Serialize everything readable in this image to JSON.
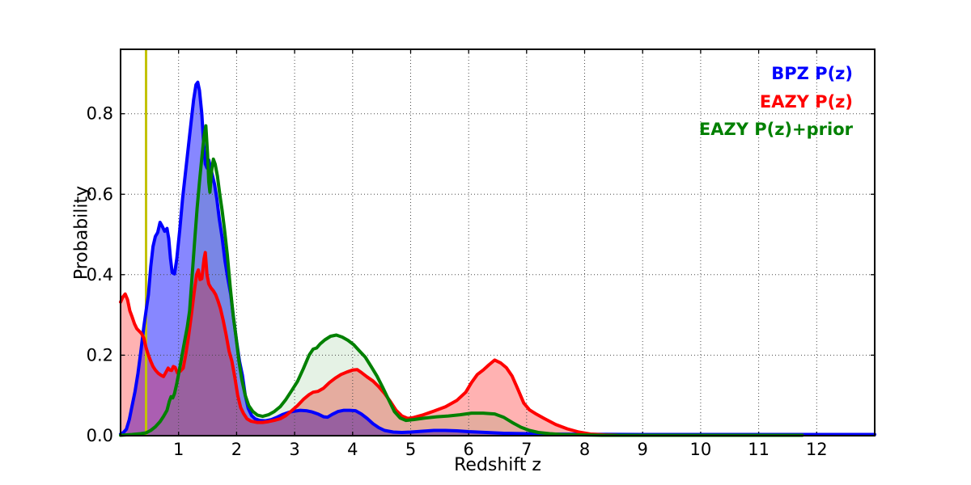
{
  "chart_data": {
    "type": "area",
    "title": "",
    "xlabel": "Redshift z",
    "ylabel": "Probability",
    "xlim": [
      0,
      13
    ],
    "ylim": [
      0,
      0.96
    ],
    "xticks": [
      1,
      2,
      3,
      4,
      5,
      6,
      7,
      8,
      9,
      10,
      11,
      12
    ],
    "yticks": [
      0.0,
      0.2,
      0.4,
      0.6,
      0.8
    ],
    "grid": "dotted-both-axes",
    "legend_position": "top-right",
    "grid_color": "#4a4a4a",
    "axis_color": "#000000",
    "vline": {
      "x": 0.44,
      "color": "#c3c300",
      "width": 3
    },
    "series": [
      {
        "name": "BPZ P(z)",
        "color": "#0000ff",
        "fill_opacity": 0.47,
        "points": [
          [
            0,
            0.004
          ],
          [
            0.05,
            0.008
          ],
          [
            0.1,
            0.016
          ],
          [
            0.15,
            0.04
          ],
          [
            0.2,
            0.075
          ],
          [
            0.25,
            0.11
          ],
          [
            0.3,
            0.155
          ],
          [
            0.35,
            0.21
          ],
          [
            0.4,
            0.27
          ],
          [
            0.44,
            0.31
          ],
          [
            0.48,
            0.35
          ],
          [
            0.52,
            0.42
          ],
          [
            0.56,
            0.47
          ],
          [
            0.6,
            0.495
          ],
          [
            0.64,
            0.505
          ],
          [
            0.68,
            0.53
          ],
          [
            0.72,
            0.52
          ],
          [
            0.76,
            0.508
          ],
          [
            0.8,
            0.515
          ],
          [
            0.83,
            0.49
          ],
          [
            0.86,
            0.44
          ],
          [
            0.89,
            0.405
          ],
          [
            0.93,
            0.402
          ],
          [
            0.97,
            0.44
          ],
          [
            1.02,
            0.51
          ],
          [
            1.07,
            0.59
          ],
          [
            1.12,
            0.655
          ],
          [
            1.17,
            0.72
          ],
          [
            1.22,
            0.785
          ],
          [
            1.26,
            0.835
          ],
          [
            1.3,
            0.872
          ],
          [
            1.33,
            0.878
          ],
          [
            1.36,
            0.858
          ],
          [
            1.4,
            0.8
          ],
          [
            1.43,
            0.73
          ],
          [
            1.46,
            0.675
          ],
          [
            1.49,
            0.665
          ],
          [
            1.52,
            0.685
          ],
          [
            1.55,
            0.667
          ],
          [
            1.58,
            0.648
          ],
          [
            1.62,
            0.625
          ],
          [
            1.66,
            0.588
          ],
          [
            1.7,
            0.54
          ],
          [
            1.75,
            0.492
          ],
          [
            1.8,
            0.435
          ],
          [
            1.85,
            0.39
          ],
          [
            1.9,
            0.35
          ],
          [
            1.95,
            0.29
          ],
          [
            2.0,
            0.235
          ],
          [
            2.05,
            0.185
          ],
          [
            2.1,
            0.15
          ],
          [
            2.15,
            0.1
          ],
          [
            2.2,
            0.068
          ],
          [
            2.26,
            0.05
          ],
          [
            2.32,
            0.042
          ],
          [
            2.4,
            0.038
          ],
          [
            2.5,
            0.037
          ],
          [
            2.6,
            0.04
          ],
          [
            2.7,
            0.046
          ],
          [
            2.8,
            0.053
          ],
          [
            2.9,
            0.058
          ],
          [
            3.0,
            0.061
          ],
          [
            3.1,
            0.063
          ],
          [
            3.2,
            0.062
          ],
          [
            3.3,
            0.059
          ],
          [
            3.4,
            0.054
          ],
          [
            3.5,
            0.047
          ],
          [
            3.57,
            0.046
          ],
          [
            3.65,
            0.053
          ],
          [
            3.75,
            0.06
          ],
          [
            3.85,
            0.063
          ],
          [
            3.95,
            0.063
          ],
          [
            4.05,
            0.062
          ],
          [
            4.15,
            0.054
          ],
          [
            4.25,
            0.043
          ],
          [
            4.35,
            0.03
          ],
          [
            4.45,
            0.02
          ],
          [
            4.55,
            0.013
          ],
          [
            4.7,
            0.009
          ],
          [
            4.85,
            0.008
          ],
          [
            5.0,
            0.009
          ],
          [
            5.2,
            0.011
          ],
          [
            5.4,
            0.013
          ],
          [
            5.6,
            0.013
          ],
          [
            5.8,
            0.012
          ],
          [
            6.0,
            0.01
          ],
          [
            6.3,
            0.008
          ],
          [
            6.6,
            0.006
          ],
          [
            7.0,
            0.005
          ],
          [
            7.5,
            0.004
          ],
          [
            8.0,
            0.0035
          ],
          [
            9.0,
            0.003
          ],
          [
            10.0,
            0.003
          ],
          [
            11.0,
            0.003
          ],
          [
            12.0,
            0.003
          ],
          [
            13.0,
            0.003
          ]
        ]
      },
      {
        "name": "EAZY P(z)",
        "color": "#ff0000",
        "fill_opacity": 0.3,
        "points": [
          [
            0,
            0.332
          ],
          [
            0.04,
            0.345
          ],
          [
            0.08,
            0.352
          ],
          [
            0.12,
            0.338
          ],
          [
            0.16,
            0.31
          ],
          [
            0.2,
            0.295
          ],
          [
            0.24,
            0.278
          ],
          [
            0.28,
            0.266
          ],
          [
            0.32,
            0.26
          ],
          [
            0.36,
            0.254
          ],
          [
            0.4,
            0.243
          ],
          [
            0.44,
            0.219
          ],
          [
            0.48,
            0.2
          ],
          [
            0.52,
            0.185
          ],
          [
            0.56,
            0.172
          ],
          [
            0.6,
            0.163
          ],
          [
            0.65,
            0.155
          ],
          [
            0.7,
            0.15
          ],
          [
            0.74,
            0.147
          ],
          [
            0.78,
            0.157
          ],
          [
            0.82,
            0.168
          ],
          [
            0.85,
            0.163
          ],
          [
            0.88,
            0.162
          ],
          [
            0.91,
            0.172
          ],
          [
            0.94,
            0.17
          ],
          [
            0.98,
            0.156
          ],
          [
            1.03,
            0.16
          ],
          [
            1.08,
            0.168
          ],
          [
            1.12,
            0.199
          ],
          [
            1.17,
            0.245
          ],
          [
            1.22,
            0.3
          ],
          [
            1.27,
            0.357
          ],
          [
            1.31,
            0.4
          ],
          [
            1.34,
            0.412
          ],
          [
            1.37,
            0.388
          ],
          [
            1.4,
            0.39
          ],
          [
            1.44,
            0.44
          ],
          [
            1.46,
            0.455
          ],
          [
            1.49,
            0.4
          ],
          [
            1.52,
            0.377
          ],
          [
            1.56,
            0.367
          ],
          [
            1.6,
            0.36
          ],
          [
            1.64,
            0.35
          ],
          [
            1.68,
            0.335
          ],
          [
            1.72,
            0.317
          ],
          [
            1.77,
            0.286
          ],
          [
            1.82,
            0.25
          ],
          [
            1.87,
            0.21
          ],
          [
            1.92,
            0.185
          ],
          [
            1.97,
            0.145
          ],
          [
            2.02,
            0.1
          ],
          [
            2.07,
            0.07
          ],
          [
            2.12,
            0.055
          ],
          [
            2.18,
            0.042
          ],
          [
            2.25,
            0.036
          ],
          [
            2.35,
            0.033
          ],
          [
            2.45,
            0.033
          ],
          [
            2.55,
            0.035
          ],
          [
            2.65,
            0.038
          ],
          [
            2.75,
            0.042
          ],
          [
            2.85,
            0.05
          ],
          [
            2.95,
            0.062
          ],
          [
            3.05,
            0.075
          ],
          [
            3.15,
            0.09
          ],
          [
            3.25,
            0.102
          ],
          [
            3.32,
            0.108
          ],
          [
            3.4,
            0.11
          ],
          [
            3.5,
            0.118
          ],
          [
            3.6,
            0.132
          ],
          [
            3.7,
            0.143
          ],
          [
            3.8,
            0.152
          ],
          [
            3.9,
            0.158
          ],
          [
            4.0,
            0.163
          ],
          [
            4.08,
            0.164
          ],
          [
            4.16,
            0.156
          ],
          [
            4.25,
            0.146
          ],
          [
            4.35,
            0.136
          ],
          [
            4.45,
            0.122
          ],
          [
            4.55,
            0.105
          ],
          [
            4.65,
            0.085
          ],
          [
            4.75,
            0.063
          ],
          [
            4.85,
            0.049
          ],
          [
            4.95,
            0.043
          ],
          [
            5.05,
            0.045
          ],
          [
            5.2,
            0.051
          ],
          [
            5.4,
            0.061
          ],
          [
            5.6,
            0.072
          ],
          [
            5.8,
            0.088
          ],
          [
            5.95,
            0.108
          ],
          [
            6.05,
            0.132
          ],
          [
            6.15,
            0.152
          ],
          [
            6.25,
            0.163
          ],
          [
            6.35,
            0.176
          ],
          [
            6.45,
            0.188
          ],
          [
            6.55,
            0.181
          ],
          [
            6.65,
            0.169
          ],
          [
            6.75,
            0.148
          ],
          [
            6.85,
            0.115
          ],
          [
            6.95,
            0.081
          ],
          [
            7.05,
            0.064
          ],
          [
            7.15,
            0.055
          ],
          [
            7.3,
            0.043
          ],
          [
            7.5,
            0.028
          ],
          [
            7.7,
            0.017
          ],
          [
            7.9,
            0.009
          ],
          [
            8.1,
            0.004
          ],
          [
            8.35,
            0.002
          ],
          [
            8.6,
            0.001
          ],
          [
            9.5,
            0.001
          ],
          [
            10.5,
            0.001
          ],
          [
            11.75,
            0.001
          ]
        ]
      },
      {
        "name": "EAZY P(z)+prior",
        "color": "#008000",
        "fill_opacity": 0.1,
        "points": [
          [
            0,
            0.001
          ],
          [
            0.2,
            0.003
          ],
          [
            0.35,
            0.005
          ],
          [
            0.44,
            0.007
          ],
          [
            0.52,
            0.013
          ],
          [
            0.6,
            0.022
          ],
          [
            0.68,
            0.035
          ],
          [
            0.74,
            0.048
          ],
          [
            0.8,
            0.063
          ],
          [
            0.84,
            0.085
          ],
          [
            0.87,
            0.097
          ],
          [
            0.9,
            0.094
          ],
          [
            0.93,
            0.105
          ],
          [
            0.97,
            0.13
          ],
          [
            1.01,
            0.16
          ],
          [
            1.06,
            0.2
          ],
          [
            1.11,
            0.24
          ],
          [
            1.15,
            0.27
          ],
          [
            1.19,
            0.31
          ],
          [
            1.24,
            0.41
          ],
          [
            1.28,
            0.49
          ],
          [
            1.32,
            0.565
          ],
          [
            1.36,
            0.63
          ],
          [
            1.4,
            0.69
          ],
          [
            1.44,
            0.745
          ],
          [
            1.47,
            0.77
          ],
          [
            1.5,
            0.7
          ],
          [
            1.52,
            0.63
          ],
          [
            1.54,
            0.605
          ],
          [
            1.57,
            0.66
          ],
          [
            1.6,
            0.687
          ],
          [
            1.63,
            0.675
          ],
          [
            1.67,
            0.645
          ],
          [
            1.71,
            0.6
          ],
          [
            1.75,
            0.56
          ],
          [
            1.79,
            0.515
          ],
          [
            1.84,
            0.45
          ],
          [
            1.89,
            0.37
          ],
          [
            1.94,
            0.3
          ],
          [
            1.99,
            0.245
          ],
          [
            2.04,
            0.185
          ],
          [
            2.09,
            0.14
          ],
          [
            2.15,
            0.1
          ],
          [
            2.21,
            0.075
          ],
          [
            2.28,
            0.06
          ],
          [
            2.36,
            0.051
          ],
          [
            2.45,
            0.048
          ],
          [
            2.55,
            0.052
          ],
          [
            2.65,
            0.06
          ],
          [
            2.75,
            0.072
          ],
          [
            2.85,
            0.09
          ],
          [
            2.95,
            0.112
          ],
          [
            3.05,
            0.135
          ],
          [
            3.15,
            0.166
          ],
          [
            3.25,
            0.2
          ],
          [
            3.32,
            0.215
          ],
          [
            3.38,
            0.218
          ],
          [
            3.44,
            0.228
          ],
          [
            3.52,
            0.238
          ],
          [
            3.62,
            0.247
          ],
          [
            3.72,
            0.25
          ],
          [
            3.82,
            0.245
          ],
          [
            3.92,
            0.237
          ],
          [
            4.02,
            0.226
          ],
          [
            4.12,
            0.21
          ],
          [
            4.22,
            0.195
          ],
          [
            4.32,
            0.172
          ],
          [
            4.42,
            0.148
          ],
          [
            4.52,
            0.12
          ],
          [
            4.62,
            0.09
          ],
          [
            4.72,
            0.06
          ],
          [
            4.82,
            0.044
          ],
          [
            4.92,
            0.038
          ],
          [
            5.05,
            0.04
          ],
          [
            5.25,
            0.044
          ],
          [
            5.45,
            0.047
          ],
          [
            5.65,
            0.049
          ],
          [
            5.85,
            0.052
          ],
          [
            6.05,
            0.056
          ],
          [
            6.25,
            0.056
          ],
          [
            6.45,
            0.054
          ],
          [
            6.6,
            0.046
          ],
          [
            6.75,
            0.033
          ],
          [
            6.9,
            0.021
          ],
          [
            7.05,
            0.013
          ],
          [
            7.2,
            0.008
          ],
          [
            7.4,
            0.005
          ],
          [
            7.6,
            0.003
          ],
          [
            7.9,
            0.002
          ],
          [
            8.3,
            0.001
          ],
          [
            9.0,
            0.001
          ],
          [
            10.0,
            0.001
          ],
          [
            11.0,
            0.001
          ],
          [
            11.75,
            0.001
          ]
        ]
      }
    ]
  }
}
